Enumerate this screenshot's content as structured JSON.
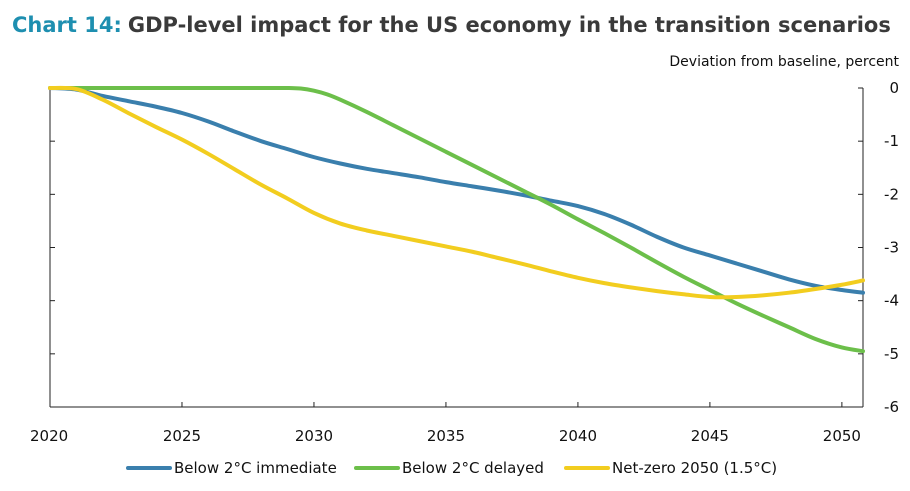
{
  "title": {
    "prefix": "Chart 14:",
    "text": "GDP-level impact for the US economy in the transition scenarios"
  },
  "units_label": "Deviation from baseline, percent",
  "chart_data": {
    "type": "line",
    "title": "Chart 14: GDP-level impact for the US economy in the transition scenarios",
    "ylabel": "Deviation from baseline, percent",
    "xlabel": "",
    "xlim": [
      2020,
      2050.8
    ],
    "ylim": [
      -6,
      0
    ],
    "x_ticks": [
      "2020",
      "2025",
      "2030",
      "2035",
      "2040",
      "2045",
      "2050"
    ],
    "y_ticks": [
      "0",
      "-1",
      "-2",
      "-3",
      "-4",
      "-5",
      "-6"
    ],
    "grid": false,
    "legend_position": "bottom",
    "series": [
      {
        "name": "Below 2°C immediate",
        "color": "#3a7fad",
        "x": [
          2020,
          2021,
          2022,
          2023,
          2024,
          2025,
          2026,
          2027,
          2028,
          2029,
          2030,
          2031,
          2032,
          2033,
          2034,
          2035,
          2036,
          2037,
          2038,
          2039,
          2040,
          2041,
          2042,
          2043,
          2044,
          2045,
          2046,
          2047,
          2048,
          2049,
          2050,
          2050.8
        ],
        "y": [
          0,
          -0.03,
          -0.15,
          -0.25,
          -0.35,
          -0.47,
          -0.63,
          -0.82,
          -1.0,
          -1.15,
          -1.3,
          -1.42,
          -1.52,
          -1.6,
          -1.68,
          -1.77,
          -1.85,
          -1.93,
          -2.02,
          -2.12,
          -2.22,
          -2.37,
          -2.57,
          -2.8,
          -3.0,
          -3.15,
          -3.3,
          -3.45,
          -3.6,
          -3.72,
          -3.8,
          -3.85
        ]
      },
      {
        "name": "Below 2°C delayed",
        "color": "#6cbf4a",
        "x": [
          2020,
          2021,
          2022,
          2023,
          2024,
          2025,
          2026,
          2027,
          2028,
          2029,
          2029.5,
          2030,
          2030.5,
          2031,
          2032,
          2033,
          2034,
          2035,
          2036,
          2037,
          2038,
          2039,
          2040,
          2041,
          2042,
          2043,
          2044,
          2045,
          2046,
          2047,
          2048,
          2049,
          2050,
          2050.8
        ],
        "y": [
          0,
          0,
          0,
          0,
          0,
          0,
          0,
          0,
          0,
          0,
          -0.01,
          -0.05,
          -0.12,
          -0.22,
          -0.45,
          -0.7,
          -0.95,
          -1.2,
          -1.45,
          -1.7,
          -1.95,
          -2.2,
          -2.47,
          -2.73,
          -3.0,
          -3.28,
          -3.55,
          -3.8,
          -4.05,
          -4.28,
          -4.5,
          -4.72,
          -4.88,
          -4.95
        ]
      },
      {
        "name": "Net-zero 2050 (1.5°C)",
        "color": "#f2cd1f",
        "x": [
          2020,
          2021,
          2022,
          2023,
          2024,
          2025,
          2026,
          2027,
          2028,
          2029,
          2030,
          2031,
          2032,
          2033,
          2034,
          2035,
          2036,
          2037,
          2038,
          2039,
          2040,
          2041,
          2042,
          2043,
          2044,
          2045,
          2046,
          2047,
          2048,
          2049,
          2050,
          2050.8
        ],
        "y": [
          0,
          -0.02,
          -0.22,
          -0.48,
          -0.73,
          -0.97,
          -1.24,
          -1.53,
          -1.82,
          -2.08,
          -2.35,
          -2.55,
          -2.68,
          -2.78,
          -2.88,
          -2.98,
          -3.08,
          -3.2,
          -3.32,
          -3.45,
          -3.57,
          -3.67,
          -3.75,
          -3.82,
          -3.88,
          -3.93,
          -3.93,
          -3.9,
          -3.85,
          -3.78,
          -3.7,
          -3.62
        ]
      }
    ]
  }
}
